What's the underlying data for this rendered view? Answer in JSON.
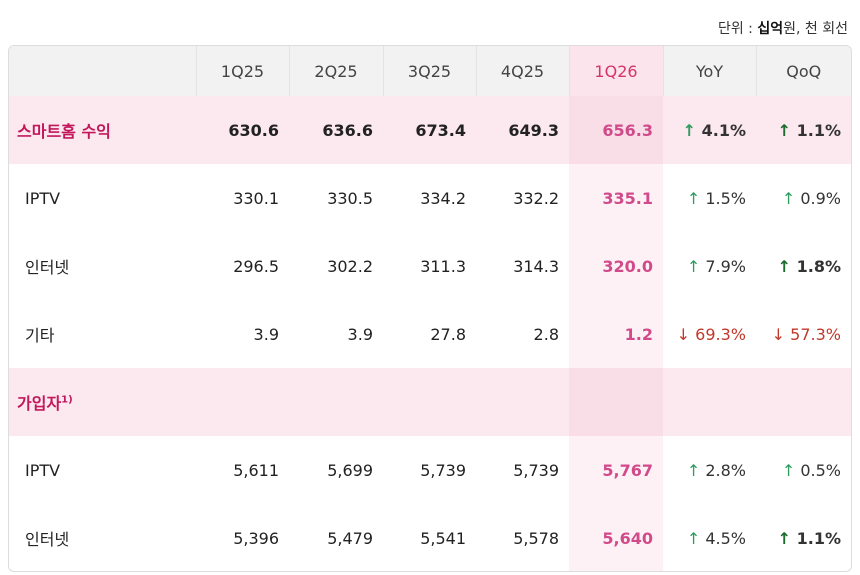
{
  "unit_note": {
    "prefix": "단위 : ",
    "bold": "십억",
    "suffix": "원, 천 회선"
  },
  "table": {
    "columns": [
      "1Q25",
      "2Q25",
      "3Q25",
      "4Q25",
      "1Q26",
      "YoY",
      "QoQ"
    ],
    "highlight_column": 4,
    "rows": [
      {
        "kind": "section",
        "label": "스마트홈 수익",
        "values": [
          "630.6",
          "636.6",
          "673.4",
          "649.3",
          "656.3"
        ],
        "yoy": {
          "text": "↑ 4.1%",
          "trend": "up",
          "bold": false
        },
        "qoq": {
          "text": "↑ 1.1%",
          "trend": "up",
          "bold": true
        }
      },
      {
        "kind": "item",
        "label": "IPTV",
        "values": [
          "330.1",
          "330.5",
          "334.2",
          "332.2",
          "335.1"
        ],
        "yoy": {
          "text": "↑ 1.5%",
          "trend": "up",
          "bold": false
        },
        "qoq": {
          "text": "↑ 0.9%",
          "trend": "up",
          "bold": false
        }
      },
      {
        "kind": "item",
        "label": "인터넷",
        "values": [
          "296.5",
          "302.2",
          "311.3",
          "314.3",
          "320.0"
        ],
        "yoy": {
          "text": "↑ 7.9%",
          "trend": "up",
          "bold": false
        },
        "qoq": {
          "text": "↑ 1.8%",
          "trend": "up",
          "bold": true
        }
      },
      {
        "kind": "item",
        "label": "기타",
        "values": [
          "3.9",
          "3.9",
          "27.8",
          "2.8",
          "1.2"
        ],
        "yoy": {
          "text": "↓ 69.3%",
          "trend": "down",
          "bold": false
        },
        "qoq": {
          "text": "↓ 57.3%",
          "trend": "down",
          "bold": false
        }
      },
      {
        "kind": "header",
        "label": "가입자",
        "note": "1)"
      },
      {
        "kind": "item",
        "label": "IPTV",
        "values": [
          "5,611",
          "5,699",
          "5,739",
          "5,739",
          "5,767"
        ],
        "yoy": {
          "text": "↑ 2.8%",
          "trend": "up",
          "bold": false
        },
        "qoq": {
          "text": "↑ 0.5%",
          "trend": "up",
          "bold": false
        }
      },
      {
        "kind": "item",
        "label": "인터넷",
        "values": [
          "5,396",
          "5,479",
          "5,541",
          "5,578",
          "5,640"
        ],
        "yoy": {
          "text": "↑ 4.5%",
          "trend": "up",
          "bold": false
        },
        "qoq": {
          "text": "↑ 1.1%",
          "trend": "up",
          "bold": true
        }
      }
    ]
  }
}
